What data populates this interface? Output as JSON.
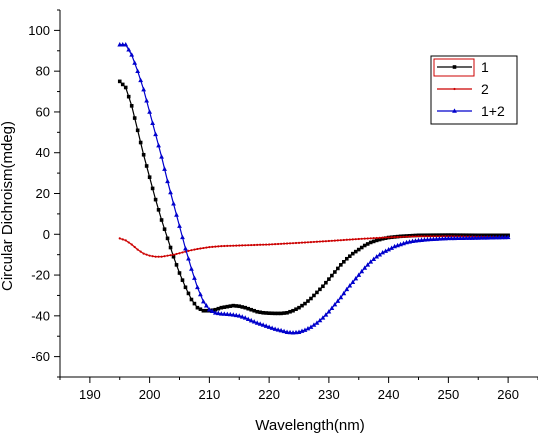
{
  "chart_data": {
    "type": "line",
    "title": "",
    "xlabel": "Wavelength(nm)",
    "ylabel": "Circular Dichroism(mdeg)",
    "xlim": [
      185,
      265
    ],
    "ylim": [
      -70,
      110
    ],
    "xticks": [
      190,
      200,
      210,
      220,
      230,
      240,
      250,
      260
    ],
    "yticks": [
      -60,
      -40,
      -20,
      0,
      20,
      40,
      60,
      80,
      100
    ],
    "grid": false,
    "legend_position": "top-right",
    "series": [
      {
        "name": "1",
        "color": "#000000",
        "marker": "square",
        "points": [
          [
            195,
            75
          ],
          [
            196,
            72
          ],
          [
            197,
            63
          ],
          [
            198,
            51
          ],
          [
            199,
            39
          ],
          [
            200,
            28
          ],
          [
            201,
            17
          ],
          [
            202,
            7
          ],
          [
            203,
            -2
          ],
          [
            204,
            -11
          ],
          [
            205,
            -19
          ],
          [
            206,
            -26
          ],
          [
            207,
            -32
          ],
          [
            208,
            -36
          ],
          [
            209,
            -37.5
          ],
          [
            210,
            -37.5
          ],
          [
            211,
            -37
          ],
          [
            212,
            -36
          ],
          [
            213,
            -35.5
          ],
          [
            214,
            -35
          ],
          [
            215,
            -35.3
          ],
          [
            216,
            -36
          ],
          [
            217,
            -37
          ],
          [
            218,
            -38
          ],
          [
            219,
            -38.5
          ],
          [
            220,
            -38.7
          ],
          [
            221,
            -38.8
          ],
          [
            222,
            -38.8
          ],
          [
            223,
            -38.5
          ],
          [
            224,
            -37.5
          ],
          [
            225,
            -36
          ],
          [
            226,
            -34
          ],
          [
            227,
            -31.5
          ],
          [
            228,
            -28.5
          ],
          [
            229,
            -25.5
          ],
          [
            230,
            -22
          ],
          [
            231,
            -18.5
          ],
          [
            232,
            -15
          ],
          [
            233,
            -12
          ],
          [
            234,
            -9.5
          ],
          [
            235,
            -7.5
          ],
          [
            236,
            -5.5
          ],
          [
            237,
            -4
          ],
          [
            238,
            -3
          ],
          [
            239,
            -2.2
          ],
          [
            240,
            -1.6
          ],
          [
            242,
            -1
          ],
          [
            245,
            -0.5
          ],
          [
            250,
            -0.4
          ],
          [
            255,
            -0.5
          ],
          [
            260,
            -0.5
          ]
        ]
      },
      {
        "name": "2",
        "color": "#cc0000",
        "marker": "dot",
        "points": [
          [
            195,
            -2
          ],
          [
            196,
            -3
          ],
          [
            197,
            -5
          ],
          [
            198,
            -7.5
          ],
          [
            199,
            -9.5
          ],
          [
            200,
            -10.5
          ],
          [
            201,
            -11
          ],
          [
            202,
            -11
          ],
          [
            203,
            -10.5
          ],
          [
            204,
            -10
          ],
          [
            205,
            -9.3
          ],
          [
            206,
            -8.5
          ],
          [
            207,
            -7.8
          ],
          [
            208,
            -7.2
          ],
          [
            210,
            -6.3
          ],
          [
            212,
            -5.8
          ],
          [
            215,
            -5.5
          ],
          [
            220,
            -5
          ],
          [
            225,
            -4.2
          ],
          [
            230,
            -3.3
          ],
          [
            235,
            -2.3
          ],
          [
            240,
            -1.5
          ],
          [
            245,
            -1
          ],
          [
            250,
            -1
          ],
          [
            255,
            -1.2
          ],
          [
            260,
            -1.5
          ]
        ]
      },
      {
        "name": "1+2",
        "color": "#0000cc",
        "marker": "triangle",
        "points": [
          [
            195,
            93
          ],
          [
            196,
            93
          ],
          [
            197,
            88
          ],
          [
            198,
            80
          ],
          [
            199,
            71
          ],
          [
            200,
            60
          ],
          [
            201,
            49
          ],
          [
            202,
            38
          ],
          [
            203,
            26
          ],
          [
            204,
            15
          ],
          [
            205,
            4
          ],
          [
            206,
            -7
          ],
          [
            207,
            -17
          ],
          [
            208,
            -26
          ],
          [
            209,
            -33
          ],
          [
            210,
            -37
          ],
          [
            211,
            -38.5
          ],
          [
            212,
            -39
          ],
          [
            213,
            -39.2
          ],
          [
            214,
            -39.5
          ],
          [
            215,
            -40
          ],
          [
            216,
            -41
          ],
          [
            217,
            -42.3
          ],
          [
            218,
            -43.5
          ],
          [
            219,
            -44.5
          ],
          [
            220,
            -45.5
          ],
          [
            221,
            -46.5
          ],
          [
            222,
            -47.2
          ],
          [
            223,
            -48
          ],
          [
            224,
            -48.3
          ],
          [
            225,
            -48
          ],
          [
            226,
            -47
          ],
          [
            227,
            -45.5
          ],
          [
            228,
            -43.5
          ],
          [
            229,
            -41
          ],
          [
            230,
            -38
          ],
          [
            231,
            -34.5
          ],
          [
            232,
            -31
          ],
          [
            233,
            -27
          ],
          [
            234,
            -23.5
          ],
          [
            235,
            -20
          ],
          [
            236,
            -16.5
          ],
          [
            237,
            -13.5
          ],
          [
            238,
            -11
          ],
          [
            239,
            -9
          ],
          [
            240,
            -7.5
          ],
          [
            241,
            -6
          ],
          [
            242,
            -5
          ],
          [
            243,
            -4
          ],
          [
            244,
            -3.4
          ],
          [
            245,
            -3
          ],
          [
            247,
            -2.5
          ],
          [
            250,
            -2
          ],
          [
            255,
            -1.8
          ],
          [
            260,
            -1.5
          ]
        ]
      }
    ]
  }
}
